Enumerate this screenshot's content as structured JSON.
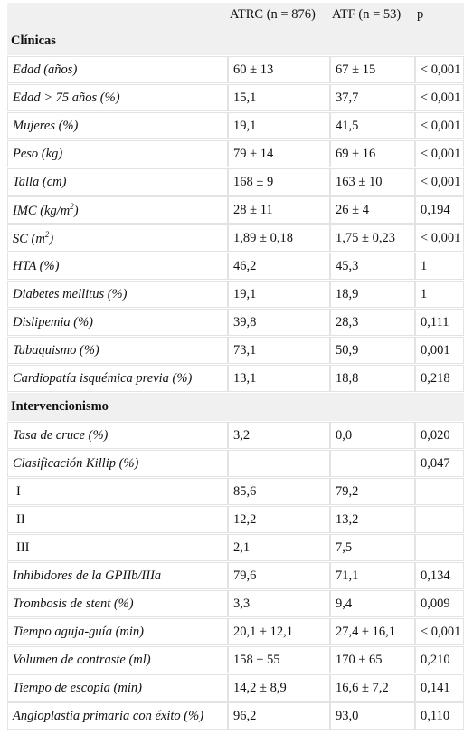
{
  "header": {
    "col0": "",
    "col1": "ATRC (n = 876)",
    "col2": "ATF (n = 53)",
    "col3": "p"
  },
  "sections": [
    {
      "title": "Clínicas",
      "rows": [
        {
          "label": "Edad (años)",
          "a": "60 ± 13",
          "b": "67 ± 15",
          "p": "< 0,001"
        },
        {
          "label": "Edad > 75 años (%)",
          "a": "15,1",
          "b": "37,7",
          "p": "< 0,001"
        },
        {
          "label": "Mujeres (%)",
          "a": "19,1",
          "b": "41,5",
          "p": "< 0,001"
        },
        {
          "label": "Peso (kg)",
          "a": "79 ± 14",
          "b": "69 ± 16",
          "p": "< 0,001"
        },
        {
          "label": "Talla (cm)",
          "a": "168 ± 9",
          "b": "163 ± 10",
          "p": "< 0,001"
        },
        {
          "label": "IMC (kg/m",
          "sup": "2",
          "tail": ")",
          "a": "28 ± 11",
          "b": "26 ± 4",
          "p": "0,194"
        },
        {
          "label": "SC (m",
          "sup": "2",
          "tail": ")",
          "a": "1,89 ± 0,18",
          "b": "1,75 ± 0,23",
          "p": "< 0,001"
        },
        {
          "label": "HTA (%)",
          "a": "46,2",
          "b": "45,3",
          "p": "1"
        },
        {
          "label": "Diabetes mellitus (%)",
          "a": "19,1",
          "b": "18,9",
          "p": "1"
        },
        {
          "label": "Dislipemia (%)",
          "a": "39,8",
          "b": "28,3",
          "p": "0,111"
        },
        {
          "label": "Tabaquismo (%)",
          "a": "73,1",
          "b": "50,9",
          "p": "0,001"
        },
        {
          "label": "Cardiopatía isquémica previa (%)",
          "a": "13,1",
          "b": "18,8",
          "p": "0,218"
        }
      ]
    },
    {
      "title": "Intervencionismo",
      "rows": [
        {
          "label": "Tasa de cruce (%)",
          "a": "3,2",
          "b": "0,0",
          "p": "0,020"
        },
        {
          "label": "Clasificación Killip (%)",
          "a": "",
          "b": "",
          "p": "0,047"
        },
        {
          "label": "I",
          "sub": true,
          "a": "85,6",
          "b": "79,2",
          "p": ""
        },
        {
          "label": "II",
          "sub": true,
          "a": "12,2",
          "b": "13,2",
          "p": ""
        },
        {
          "label": "III",
          "sub": true,
          "a": "2,1",
          "b": "7,5",
          "p": ""
        },
        {
          "label": "Inhibidores de la GPIIb/IIIa",
          "a": "79,6",
          "b": "71,1",
          "p": "0,134"
        },
        {
          "label": "Trombosis de stent (%)",
          "a": "3,3",
          "b": "9,4",
          "p": "0,009"
        },
        {
          "label": "Tiempo aguja-guía (min)",
          "a": "20,1 ± 12,1",
          "b": "27,4 ± 16,1",
          "p": "< 0,001"
        },
        {
          "label": "Volumen de contraste (ml)",
          "a": "158 ± 55",
          "b": "170 ± 65",
          "p": "0,210"
        },
        {
          "label": "Tiempo de escopia (min)",
          "a": "14,2 ± 8,9",
          "b": "16,6 ± 7,2",
          "p": "0,141"
        },
        {
          "label": "Angioplastia primaria con éxito (%)",
          "a": "96,2",
          "b": "93,0",
          "p": "0,110"
        }
      ]
    }
  ]
}
